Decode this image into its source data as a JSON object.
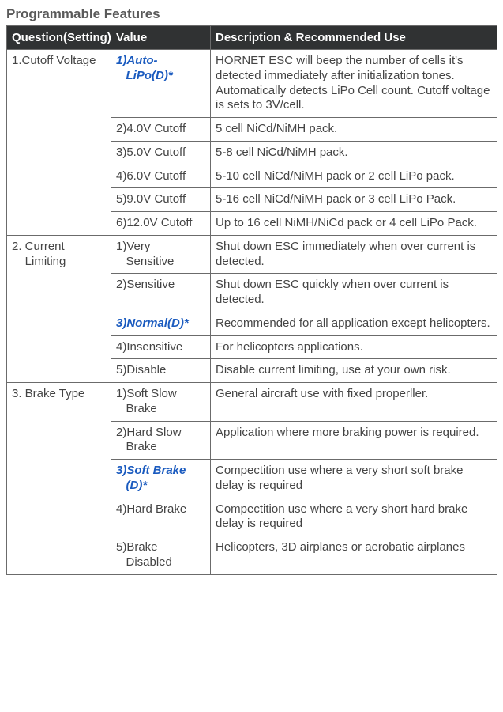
{
  "title": "Programmable Features",
  "headers": {
    "c1": "Question(Setting)",
    "c2": "Value",
    "c3": "Description & Recommended Use"
  },
  "rows": [
    {
      "q": "1.Cutoff Voltage",
      "v": "1)Auto-\n   LiPo(D)*",
      "d": "HORNET ESC will beep the number of cells it's detected immediately after initialization tones. Automatically detects LiPo Cell count. Cutoff voltage is sets to 3V/cell.",
      "def": true,
      "first": true
    },
    {
      "q": "",
      "v": "2)4.0V Cutoff",
      "d": "5 cell NiCd/NiMH pack.",
      "def": false
    },
    {
      "q": "",
      "v": "3)5.0V Cutoff",
      "d": "5-8 cell NiCd/NiMH pack.",
      "def": false
    },
    {
      "q": "",
      "v": "4)6.0V Cutoff",
      "d": "5-10 cell NiCd/NiMH pack or 2 cell LiPo pack.",
      "def": false
    },
    {
      "q": "",
      "v": "5)9.0V Cutoff",
      "d": "5-16 cell NiCd/NiMH pack or 3 cell LiPo Pack.",
      "def": false
    },
    {
      "q": "",
      "v": "6)12.0V Cutoff",
      "d": "Up to 16 cell NiMH/NiCd pack or 4 cell LiPo Pack.",
      "def": false
    },
    {
      "q": "2. Current\n    Limiting",
      "v": "1)Very\n   Sensitive",
      "d": "Shut down ESC immediately when over current is detected.",
      "def": false,
      "first": true
    },
    {
      "q": "",
      "v": "2)Sensitive",
      "d": "Shut down ESC quickly when over current is detected.",
      "def": false
    },
    {
      "q": "",
      "v": "3)Normal(D)*",
      "d": "Recommended for all application except helicopters.",
      "def": true
    },
    {
      "q": "",
      "v": "4)Insensitive",
      "d": "For helicopters applications.",
      "def": false
    },
    {
      "q": "",
      "v": "5)Disable",
      "d": "Disable current limiting, use at your own risk.",
      "def": false
    },
    {
      "q": "3. Brake Type",
      "v": "1)Soft Slow\n   Brake",
      "d": "General aircraft use with fixed properller.",
      "def": false,
      "first": true
    },
    {
      "q": "",
      "v": "2)Hard Slow\n   Brake",
      "d": "Application where more braking power is required.",
      "def": false
    },
    {
      "q": "",
      "v": "3)Soft Brake\n   (D)*",
      "d": "Compectition use where a very short soft brake delay is required",
      "def": true
    },
    {
      "q": "",
      "v": "4)Hard Brake",
      "d": "Compectition use where a very short hard brake delay is required",
      "def": false
    },
    {
      "q": "",
      "v": "5)Brake\n   Disabled",
      "d": "Helicopters, 3D airplanes or aerobatic airplanes",
      "def": false
    }
  ],
  "groupSizes": [
    6,
    5,
    5
  ]
}
